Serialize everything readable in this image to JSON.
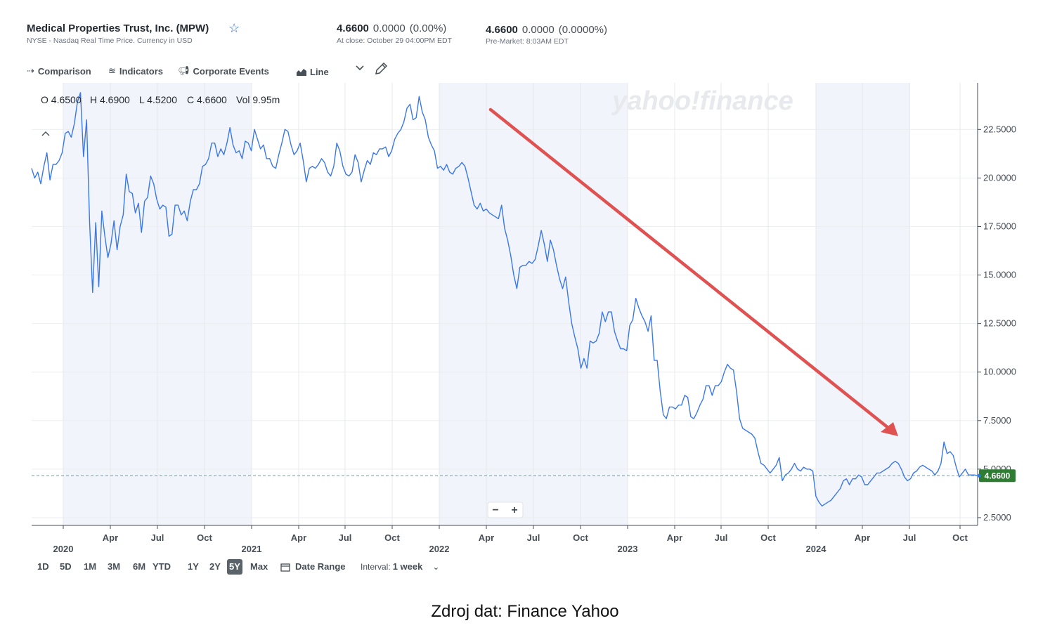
{
  "header": {
    "company": "Medical Properties Trust, Inc. (MPW)",
    "exchange_note": "NYSE - Nasdaq Real Time Price. Currency in USD",
    "close": {
      "price": "4.6600",
      "change": "0.0000",
      "pct": "(0.00%)",
      "note": "At close: October 29 04:00PM EDT"
    },
    "premarket": {
      "price": "4.6600",
      "change": "0.0000",
      "pct": "(0.0000%)",
      "note": "Pre-Market: 8:03AM EDT"
    }
  },
  "toolbar": {
    "comparison": "Comparison",
    "indicators": "Indicators",
    "corporate_events": "Corporate Events",
    "chart_type": "Line"
  },
  "ohlc": {
    "o": "O 4.6500",
    "h": "H 4.6900",
    "l": "L 4.5200",
    "c": "C 4.6600",
    "vol": "Vol 9.95m"
  },
  "watermark": "yahoo!finance",
  "zoom": {
    "minus": "−",
    "plus": "+"
  },
  "last_price_label": "4.6600",
  "ranges": [
    {
      "label": "1D",
      "active": false
    },
    {
      "label": "5D",
      "active": false
    },
    {
      "label": "1M",
      "active": false
    },
    {
      "label": "3M",
      "active": false
    },
    {
      "label": "6M",
      "active": false
    },
    {
      "label": "YTD",
      "active": false
    },
    {
      "label": "1Y",
      "active": false
    },
    {
      "label": "2Y",
      "active": false
    },
    {
      "label": "5Y",
      "active": true
    },
    {
      "label": "Max",
      "active": false
    }
  ],
  "date_range_label": "Date Range",
  "interval": {
    "label": "Interval:",
    "value": "1 week"
  },
  "caption": "Zdroj dat: Finance Yahoo",
  "colors": {
    "line": "#3b78e7",
    "arrow": "#e05252",
    "last_badge": "#2e7d32",
    "shade": "#f1f4fa"
  },
  "chart_data": {
    "type": "line",
    "x_axis": {
      "month_ticks": [
        "Apr",
        "Jul",
        "Oct",
        "Apr",
        "Jul",
        "Oct",
        "Apr",
        "Jul",
        "Oct",
        "Apr",
        "Jul",
        "Oct",
        "Apr",
        "Jul",
        "Oct"
      ],
      "year_ticks": [
        "2020",
        "2021",
        "2022",
        "2023",
        "2024"
      ]
    },
    "y_axis": {
      "ticks": [
        "2.5000",
        "5.0000",
        "7.5000",
        "10.0000",
        "12.5000",
        "15.0000",
        "17.5000",
        "20.0000",
        "22.5000"
      ],
      "range": [
        2.1,
        24.9
      ]
    },
    "grid": true,
    "series": [
      {
        "values": [
          20.5,
          20.0,
          20.3,
          19.7,
          20.6,
          21.3,
          19.9,
          20.7,
          20.7,
          20.9,
          21.3,
          22.3,
          22.4,
          22.1,
          22.8,
          23.9,
          24.4,
          21.1,
          23.0,
          17.7,
          14.1,
          17.7,
          14.4,
          18.3,
          17.0,
          15.9,
          16.6,
          17.8,
          16.3,
          17.5,
          18.1,
          20.2,
          19.3,
          19.2,
          18.2,
          18.7,
          17.2,
          18.8,
          19.0,
          20.1,
          19.7,
          18.9,
          18.4,
          18.6,
          18.5,
          17.0,
          17.1,
          18.6,
          18.6,
          18.1,
          18.3,
          17.8,
          18.8,
          19.4,
          19.4,
          19.7,
          20.6,
          20.7,
          21.0,
          21.8,
          21.8,
          21.1,
          21.5,
          21.2,
          21.8,
          22.6,
          21.7,
          21.3,
          21.4,
          21.0,
          21.9,
          21.8,
          21.4,
          22.5,
          22.0,
          21.5,
          21.7,
          21.0,
          21.0,
          20.6,
          20.5,
          21.2,
          21.8,
          22.5,
          22.4,
          21.7,
          21.2,
          21.4,
          21.8,
          20.9,
          19.8,
          20.5,
          20.6,
          20.5,
          20.7,
          21.0,
          20.8,
          20.3,
          20.1,
          20.6,
          21.8,
          21.4,
          20.6,
          20.2,
          20.1,
          20.3,
          21.2,
          20.8,
          19.8,
          20.4,
          20.9,
          20.7,
          21.3,
          21.2,
          21.5,
          21.5,
          21.6,
          21.1,
          21.4,
          22.0,
          22.3,
          22.5,
          22.9,
          23.6,
          23.8,
          23.0,
          23.1,
          24.2,
          23.4,
          23.0,
          22.1,
          21.7,
          21.4,
          20.5,
          20.6,
          20.4,
          20.7,
          20.3,
          20.2,
          20.5,
          20.6,
          20.8,
          20.6,
          20.0,
          19.3,
          18.6,
          18.4,
          18.7,
          18.3,
          18.4,
          18.2,
          18.1,
          18.0,
          17.9,
          18.6,
          17.4,
          16.8,
          16.0,
          15.0,
          14.3,
          15.4,
          15.5,
          15.5,
          15.7,
          15.6,
          15.8,
          16.5,
          17.3,
          16.6,
          15.7,
          16.8,
          16.3,
          15.5,
          14.8,
          14.3,
          14.9,
          13.6,
          12.5,
          11.8,
          11.2,
          10.2,
          10.7,
          10.2,
          11.6,
          11.5,
          11.6,
          12.0,
          13.1,
          12.6,
          13.1,
          13.1,
          12.1,
          11.6,
          11.2,
          11.2,
          11.1,
          12.4,
          12.7,
          13.8,
          13.3,
          12.9,
          12.6,
          12.1,
          12.9,
          10.6,
          10.6,
          9.0,
          7.8,
          7.6,
          8.2,
          8.2,
          8.1,
          8.3,
          8.3,
          8.8,
          8.7,
          7.7,
          7.6,
          7.9,
          8.3,
          8.6,
          9.3,
          9.3,
          8.8,
          9.3,
          9.3,
          9.5,
          10.0,
          10.4,
          10.2,
          10.1,
          9.0,
          7.6,
          7.1,
          7.0,
          6.9,
          6.8,
          6.6,
          5.9,
          5.3,
          5.2,
          5.0,
          4.8,
          5.0,
          5.2,
          5.6,
          4.4,
          4.7,
          4.8,
          5.0,
          5.3,
          5.0,
          4.9,
          5.1,
          5.0,
          5.0,
          4.9,
          3.6,
          3.3,
          3.1,
          3.2,
          3.3,
          3.4,
          3.6,
          3.8,
          4.0,
          4.4,
          4.5,
          4.2,
          4.5,
          4.5,
          4.7,
          4.6,
          4.2,
          4.2,
          4.4,
          4.6,
          4.8,
          4.8,
          4.9,
          5.0,
          5.1,
          5.3,
          5.4,
          5.3,
          5.0,
          4.6,
          4.4,
          4.5,
          4.8,
          4.9,
          5.1,
          5.2,
          5.1,
          5.0,
          4.9,
          4.7,
          4.9,
          5.3,
          6.4,
          5.8,
          5.9,
          5.7,
          5.1,
          4.6,
          4.8,
          5.0,
          4.7,
          4.7,
          4.7,
          4.66
        ]
      }
    ],
    "annotation": "downtrend-arrow"
  }
}
